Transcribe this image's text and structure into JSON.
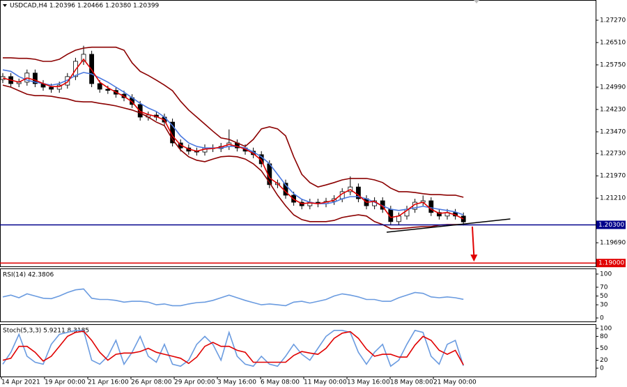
{
  "chart_data": [
    {
      "type": "candlestick",
      "title": "USDCAD,H4  1.20396 1.20466 1.20380 1.20399",
      "xlim": [
        -0.345,
        73.36
      ],
      "ylim": [
        1.18862,
        1.27959
      ],
      "yticks": [
        {
          "value": 1.2727,
          "label": "1.27270"
        },
        {
          "value": 1.2651,
          "label": "1.26510"
        },
        {
          "value": 1.2575,
          "label": "1.25750"
        },
        {
          "value": 1.2499,
          "label": "1.24990"
        },
        {
          "value": 1.2423,
          "label": "1.24230"
        },
        {
          "value": 1.2347,
          "label": "1.23470"
        },
        {
          "value": 1.2273,
          "label": "1.22730"
        },
        {
          "value": 1.2197,
          "label": "1.21970"
        },
        {
          "value": 1.2121,
          "label": "1.21210"
        },
        {
          "value": 1.1969,
          "label": "1.19690"
        }
      ],
      "up_color": "#ffffff",
      "down_color": "#000000",
      "wick_color": "#000000",
      "open": [
        1.2525,
        1.2535,
        1.2511,
        1.2516,
        1.2547,
        1.2511,
        1.2499,
        1.2492,
        1.2506,
        1.2535,
        1.2587,
        1.2611,
        1.2511,
        1.2492,
        1.2488,
        1.2475,
        1.2463,
        1.244,
        1.2397,
        1.2404,
        1.2397,
        1.238,
        1.2309,
        1.2292,
        1.2281,
        1.2278,
        1.2292,
        1.229,
        1.2297,
        1.2309,
        1.2292,
        1.2281,
        1.2269,
        1.2238,
        1.2167,
        1.2172,
        1.2131,
        1.2107,
        1.2095,
        1.2107,
        1.2102,
        1.211,
        1.2119,
        1.2143,
        1.2159,
        1.2119,
        1.2095,
        1.2112,
        1.2083,
        1.2041,
        1.206,
        1.2083,
        1.2107,
        1.2112,
        1.2072,
        1.206,
        1.2072,
        1.206
      ],
      "high": [
        1.2547,
        1.2547,
        1.2528,
        1.2559,
        1.2559,
        1.2523,
        1.2511,
        1.2518,
        1.2547,
        1.2599,
        1.264,
        1.2623,
        1.2523,
        1.2504,
        1.25,
        1.2487,
        1.2475,
        1.2452,
        1.2416,
        1.2416,
        1.2409,
        1.2392,
        1.2321,
        1.2304,
        1.2293,
        1.2304,
        1.2304,
        1.2309,
        1.2355,
        1.2321,
        1.2304,
        1.2293,
        1.2281,
        1.225,
        1.2184,
        1.2184,
        1.2143,
        1.2119,
        1.2119,
        1.2119,
        1.2122,
        1.2131,
        1.2155,
        1.2195,
        1.2171,
        1.2131,
        1.2124,
        1.2124,
        1.2095,
        1.2072,
        1.2095,
        1.2119,
        1.213,
        1.2124,
        1.2084,
        1.2084,
        1.2084,
        1.2072
      ],
      "low": [
        1.2513,
        1.2499,
        1.2499,
        1.2504,
        1.2499,
        1.2487,
        1.248,
        1.248,
        1.2494,
        1.2523,
        1.2575,
        1.2499,
        1.248,
        1.2476,
        1.2463,
        1.2451,
        1.2428,
        1.2385,
        1.2385,
        1.2385,
        1.2368,
        1.2297,
        1.228,
        1.2269,
        1.2266,
        1.2266,
        1.2278,
        1.2278,
        1.2285,
        1.228,
        1.2269,
        1.2257,
        1.2226,
        1.2155,
        1.2155,
        1.2119,
        1.2095,
        1.2083,
        1.2083,
        1.209,
        1.209,
        1.2098,
        1.2107,
        1.2131,
        1.2107,
        1.2083,
        1.2083,
        1.2071,
        1.2029,
        1.2029,
        1.2048,
        1.2071,
        1.2095,
        1.206,
        1.2048,
        1.2048,
        1.2048,
        1.2028
      ],
      "close": [
        1.2535,
        1.2511,
        1.2516,
        1.2547,
        1.2511,
        1.2499,
        1.2492,
        1.2506,
        1.2535,
        1.2587,
        1.2611,
        1.2511,
        1.2492,
        1.2488,
        1.2475,
        1.2463,
        1.244,
        1.2397,
        1.2404,
        1.2397,
        1.238,
        1.2309,
        1.2292,
        1.2281,
        1.2278,
        1.2292,
        1.229,
        1.2297,
        1.2309,
        1.2292,
        1.2281,
        1.2269,
        1.2238,
        1.2167,
        1.2172,
        1.2131,
        1.2107,
        1.2095,
        1.2107,
        1.2102,
        1.211,
        1.2119,
        1.2143,
        1.2159,
        1.2119,
        1.2095,
        1.2112,
        1.2083,
        1.2041,
        1.206,
        1.2083,
        1.2107,
        1.2112,
        1.2072,
        1.206,
        1.2072,
        1.206,
        1.204
      ],
      "overlays": [
        {
          "color": "#8b0000",
          "values": [
            1.2599,
            1.2599,
            1.2597,
            1.2597,
            1.2594,
            1.2587,
            1.2587,
            1.2594,
            1.2611,
            1.2625,
            1.2632,
            1.2635,
            1.2635,
            1.2635,
            1.2635,
            1.2625,
            1.2582,
            1.2553,
            1.2539,
            1.2523,
            1.2506,
            1.2487,
            1.2451,
            1.2421,
            1.2397,
            1.2373,
            1.2349,
            1.2326,
            1.2321,
            1.2309,
            1.2297,
            1.2321,
            1.2357,
            1.2364,
            1.2357,
            1.2333,
            1.2262,
            1.2202,
            1.2174,
            1.2159,
            1.2166,
            1.2174,
            1.2183,
            1.2188,
            1.2188,
            1.2188,
            1.2183,
            1.2174,
            1.2155,
            1.2143,
            1.2143,
            1.214,
            1.2136,
            1.2133,
            1.2133,
            1.2131,
            1.2131,
            1.2124
          ]
        },
        {
          "color": "#8b0000",
          "values": [
            1.2506,
            1.2499,
            1.2487,
            1.2475,
            1.247,
            1.247,
            1.2468,
            1.2463,
            1.2459,
            1.2451,
            1.2449,
            1.2449,
            1.2444,
            1.244,
            1.2435,
            1.2428,
            1.2421,
            1.2411,
            1.2397,
            1.238,
            1.2368,
            1.2321,
            1.2285,
            1.2262,
            1.225,
            1.2245,
            1.2254,
            1.2262,
            1.2264,
            1.2262,
            1.2254,
            1.2238,
            1.2214,
            1.2174,
            1.2131,
            1.2095,
            1.2064,
            1.2048,
            1.2041,
            1.2041,
            1.2041,
            1.2045,
            1.2055,
            1.206,
            1.2064,
            1.206,
            1.2041,
            1.2031,
            1.2017,
            1.2017,
            1.2019,
            1.2022,
            1.2024,
            1.2024,
            1.2029,
            1.2031,
            1.2031,
            1.2031
          ]
        },
        {
          "color": "#4a78e0",
          "values": [
            1.2558,
            1.2553,
            1.2535,
            1.2523,
            1.2516,
            1.2511,
            1.2506,
            1.2511,
            1.2523,
            1.2539,
            1.2549,
            1.2544,
            1.253,
            1.2516,
            1.2499,
            1.2482,
            1.2463,
            1.2444,
            1.2428,
            1.2416,
            1.2397,
            1.2368,
            1.2333,
            1.2309,
            1.2297,
            1.2292,
            1.2292,
            1.2292,
            1.2297,
            1.2297,
            1.2292,
            1.2278,
            1.2262,
            1.2238,
            1.2202,
            1.2166,
            1.2136,
            1.2117,
            1.2107,
            1.2102,
            1.2102,
            1.2107,
            1.2119,
            1.2126,
            1.2126,
            1.2119,
            1.2107,
            1.2095,
            1.2083,
            1.2079,
            1.2083,
            1.2088,
            1.2093,
            1.2088,
            1.2083,
            1.2079,
            1.2074,
            1.2064
          ]
        },
        {
          "color": "#e00000",
          "values": [
            1.253,
            1.2523,
            1.2516,
            1.253,
            1.2523,
            1.2511,
            1.2501,
            1.2501,
            1.2516,
            1.2558,
            1.2594,
            1.2558,
            1.2516,
            1.2497,
            1.2482,
            1.2468,
            1.2449,
            1.2416,
            1.2406,
            1.2399,
            1.2387,
            1.2333,
            1.2302,
            1.2288,
            1.2281,
            1.2288,
            1.229,
            1.2295,
            1.2304,
            1.2297,
            1.2288,
            1.2273,
            1.225,
            1.219,
            1.2171,
            1.2143,
            1.2117,
            1.2102,
            1.2105,
            1.2102,
            1.2107,
            1.2114,
            1.2136,
            1.215,
            1.2131,
            1.2107,
            1.211,
            1.2093,
            1.2055,
            1.206,
            1.2079,
            1.21,
            1.2107,
            1.2083,
            1.2069,
            1.2072,
            1.2064,
            1.205
          ]
        }
      ],
      "levels": [
        {
          "value": 1.203,
          "label": "1.20300",
          "color": "#00008b"
        },
        {
          "value": 1.19,
          "label": "1.19000",
          "color": "#e00000"
        }
      ],
      "trendline": {
        "x": [
          47.5,
          62.8
        ],
        "y": [
          1.2005,
          1.205
        ],
        "color": "#000000"
      },
      "arrow": {
        "x": [
          58.1,
          58.3
        ],
        "y": [
          1.2024,
          1.1905
        ],
        "color": "#e00000"
      }
    },
    {
      "type": "line",
      "title": "RSI(14) 42.3806",
      "xlim": [
        -0.345,
        73.36
      ],
      "ylim": [
        -9.5,
        112.7
      ],
      "yticks": [
        0,
        30,
        50,
        70,
        100
      ],
      "series": [
        {
          "color": "#6a9be0",
          "values": [
            48,
            52,
            46,
            55,
            50,
            45,
            44,
            50,
            58,
            64,
            66,
            45,
            42,
            42,
            40,
            36,
            38,
            38,
            36,
            30,
            32,
            28,
            28,
            32,
            35,
            36,
            40,
            46,
            52,
            46,
            40,
            35,
            30,
            32,
            30,
            28,
            36,
            38,
            34,
            38,
            42,
            50,
            55,
            52,
            48,
            42,
            42,
            38,
            38,
            46,
            52,
            58,
            56,
            48,
            46,
            48,
            46,
            42.3806
          ]
        }
      ]
    },
    {
      "type": "line",
      "title": "Stoch(5,3,3) 5.9211 8.3185",
      "xlim": [
        -0.345,
        73.36
      ],
      "ylim": [
        -21,
        110.5
      ],
      "yticks": [
        0,
        20,
        50,
        80,
        100
      ],
      "xticks": [
        {
          "value": -0.17,
          "label": "14 Apr 2021"
        },
        {
          "value": 5.17,
          "label": "19 Apr 00:00"
        },
        {
          "value": 10.52,
          "label": "21 Apr 16:00"
        },
        {
          "value": 15.86,
          "label": "26 Apr 08:00"
        },
        {
          "value": 21.21,
          "label": "29 Apr 00:00"
        },
        {
          "value": 26.55,
          "label": "3 May 16:00"
        },
        {
          "value": 31.9,
          "label": "6 May 08:00"
        },
        {
          "value": 37.24,
          "label": "11 May 00:00"
        },
        {
          "value": 42.59,
          "label": "13 May 16:00"
        },
        {
          "value": 47.93,
          "label": "18 May 08:00"
        },
        {
          "value": 53.28,
          "label": "21 May 00:00"
        }
      ],
      "series": [
        {
          "color": "#6a9be0",
          "values": [
            10,
            40,
            85,
            30,
            15,
            10,
            60,
            85,
            90,
            95,
            95,
            20,
            10,
            30,
            70,
            10,
            40,
            80,
            30,
            15,
            60,
            10,
            5,
            20,
            60,
            80,
            60,
            20,
            90,
            30,
            10,
            5,
            30,
            10,
            5,
            30,
            60,
            35,
            20,
            50,
            80,
            95,
            95,
            90,
            40,
            10,
            40,
            60,
            5,
            20,
            60,
            95,
            90,
            30,
            10,
            60,
            70,
            5.9211
          ]
        },
        {
          "color": "#e00000",
          "values": [
            20,
            25,
            55,
            55,
            40,
            18,
            30,
            55,
            80,
            90,
            93,
            70,
            40,
            20,
            35,
            38,
            38,
            42,
            50,
            40,
            35,
            30,
            25,
            12,
            28,
            55,
            65,
            55,
            55,
            45,
            40,
            15,
            15,
            15,
            15,
            15,
            32,
            42,
            38,
            35,
            50,
            75,
            88,
            92,
            75,
            48,
            30,
            35,
            35,
            28,
            28,
            58,
            80,
            70,
            45,
            35,
            45,
            8.3185
          ]
        }
      ]
    }
  ]
}
